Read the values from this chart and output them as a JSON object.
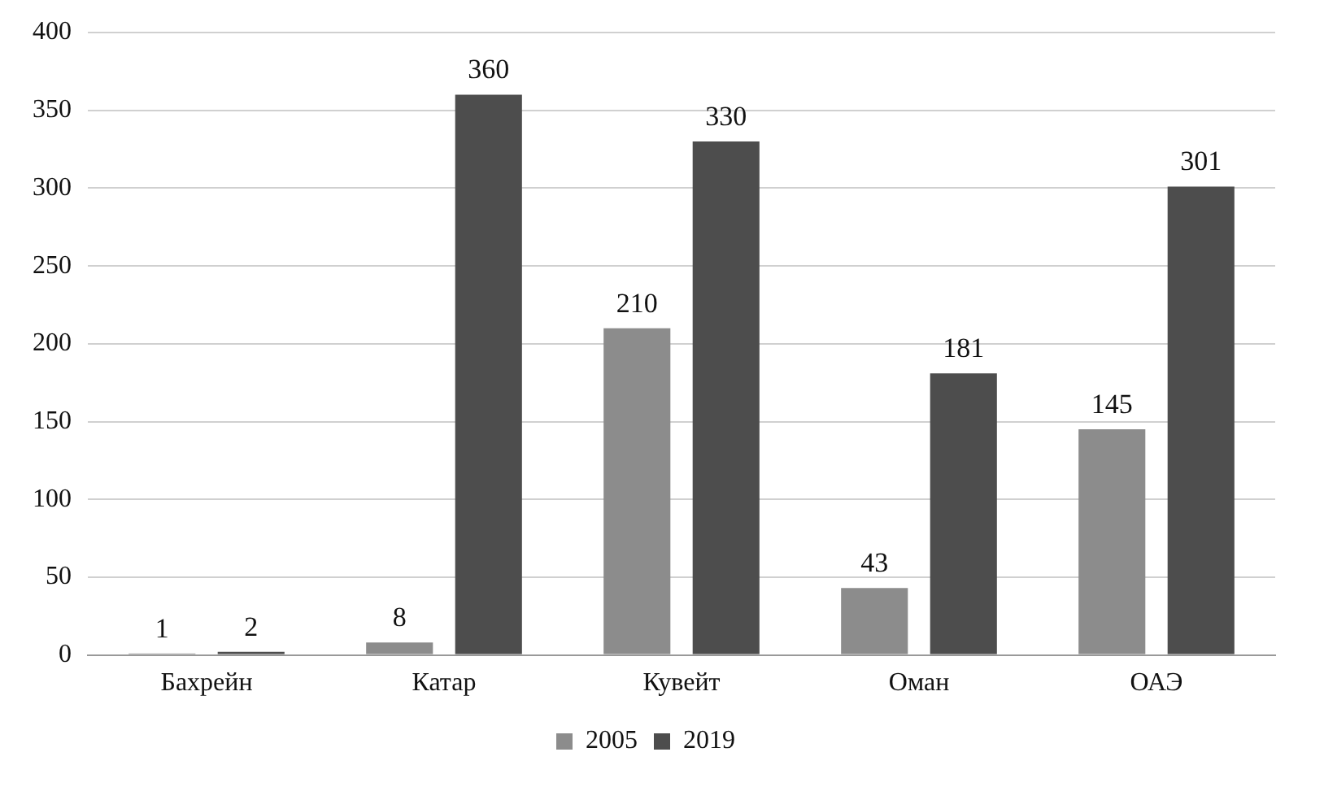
{
  "chart_data": {
    "type": "bar",
    "categories": [
      "Бахрейн",
      "Катар",
      "Кувейт",
      "Оман",
      "ОАЭ"
    ],
    "series": [
      {
        "name": "2005",
        "color": "#8c8c8c",
        "values": [
          1,
          8,
          210,
          43,
          145
        ]
      },
      {
        "name": "2019",
        "color": "#4d4d4d",
        "values": [
          2,
          360,
          330,
          181,
          301
        ]
      }
    ],
    "ylim": [
      0,
      400
    ],
    "yticks": [
      0,
      50,
      100,
      150,
      200,
      250,
      300,
      350,
      400
    ],
    "grid": "y",
    "legend": "bottom",
    "data_labels": true
  }
}
